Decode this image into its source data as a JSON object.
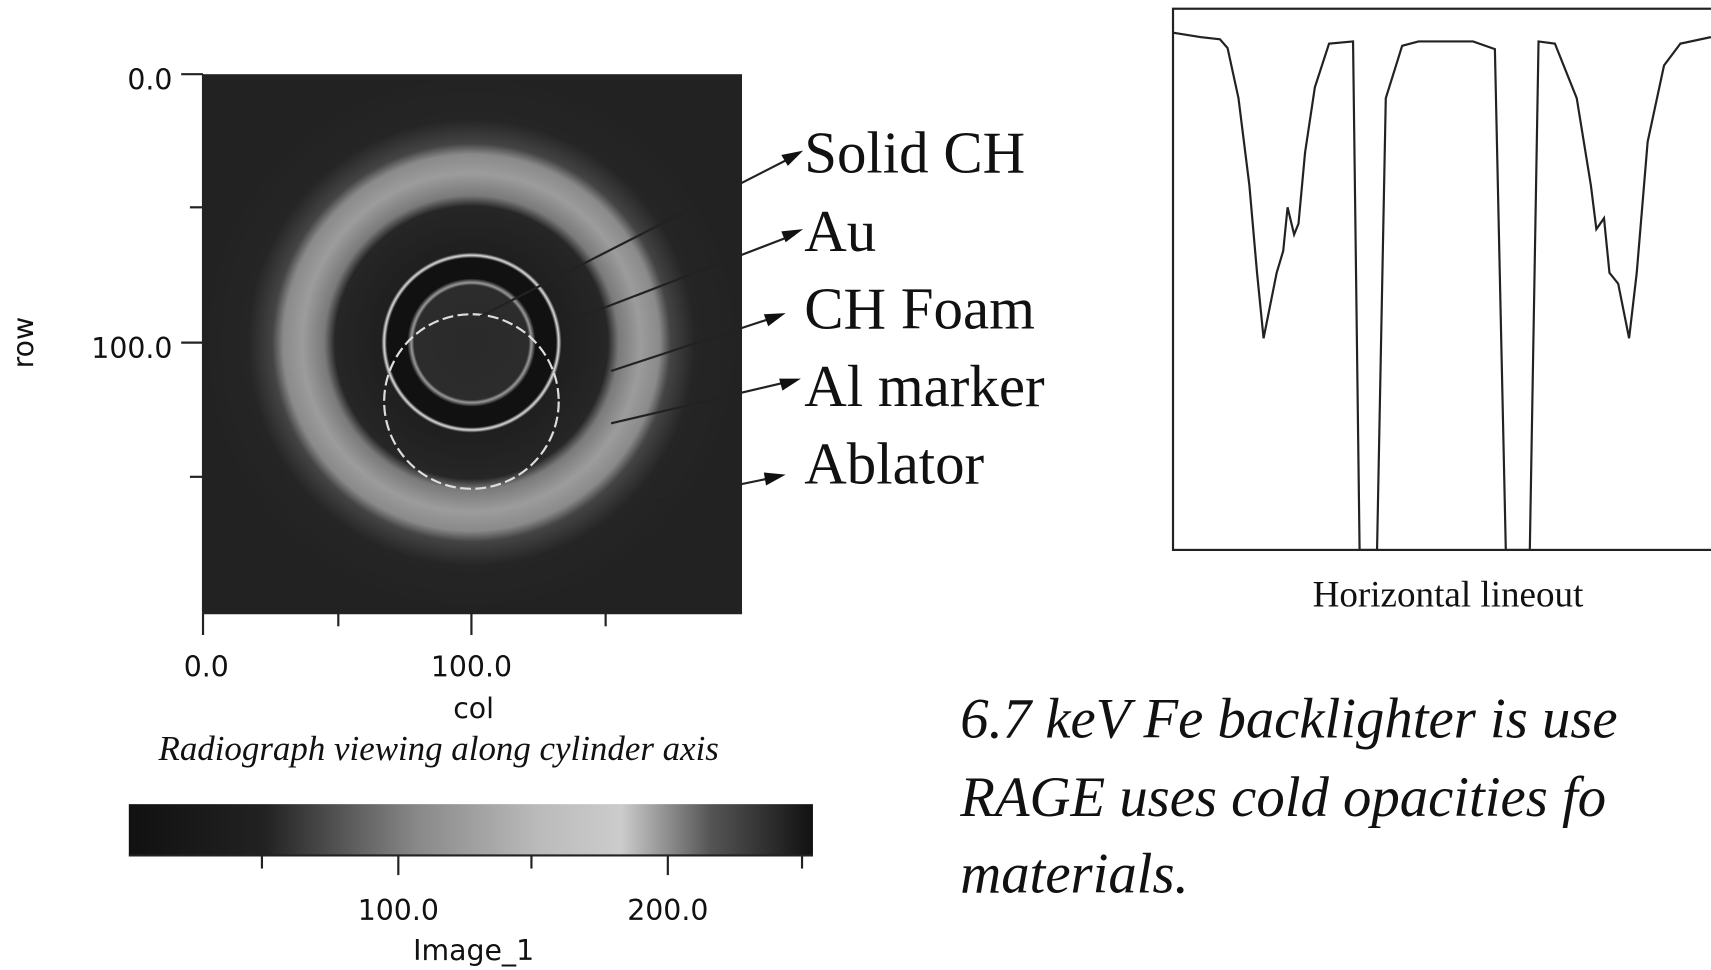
{
  "radiograph": {
    "y_axis": {
      "title": "row",
      "tick_labels": [
        "0.0",
        "100.0"
      ]
    },
    "x_axis": {
      "title": "col",
      "tick_labels": [
        "0.0",
        "100.0"
      ]
    },
    "caption": "Radiograph viewing along cylinder axis",
    "labels": [
      "Solid CH",
      "Au",
      "CH Foam",
      "Al marker",
      "Ablator"
    ]
  },
  "colorbar": {
    "tick_labels": [
      "100.0",
      "200.0"
    ],
    "title": "Image_1"
  },
  "lineout": {
    "caption": "Horizontal lineout"
  },
  "note": {
    "lines": [
      "6.7 keV Fe backlighter is use",
      "RAGE uses cold opacities fo",
      "materials."
    ]
  }
}
